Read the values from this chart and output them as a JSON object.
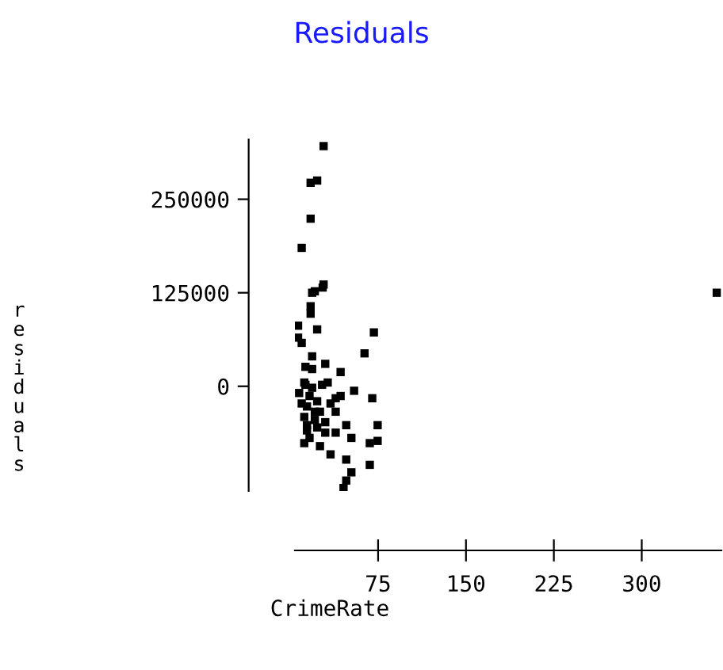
{
  "chart_data": {
    "type": "scatter",
    "title": "Residuals",
    "xlabel": "CrimeRate",
    "ylabel": "residuals",
    "x": [
      28.5,
      23,
      17.4,
      17.4,
      9.8,
      28.5,
      21,
      27.7,
      18.7,
      17.4,
      17.4,
      6.7,
      23,
      71.4,
      6.7,
      9.8,
      63.4,
      18.7,
      29.9,
      13,
      18.7,
      43,
      32,
      13,
      54.5,
      70,
      43,
      7.6,
      16.5,
      23,
      34.4,
      14.3,
      25.4,
      38.8,
      12,
      21,
      29.9,
      47.8,
      74.6,
      14.3,
      38.8,
      52.2,
      67.9,
      74.6,
      12,
      25.4,
      34.4,
      47.8,
      67.9,
      52.2,
      47.8,
      45.5,
      12,
      9.8,
      18.7,
      21,
      14.3,
      16.5,
      29.9,
      27.2,
      38.8,
      23,
      364
    ],
    "values": [
      321000,
      275000,
      272000,
      224000,
      185000,
      136000,
      127000,
      132000,
      125000,
      107000,
      97000,
      81000,
      76000,
      72000,
      65000,
      58000,
      44000,
      40000,
      30000,
      26000,
      23000,
      19000,
      5000,
      2000,
      -6000,
      -16000,
      -13000,
      -9000,
      -13000,
      -20000,
      -23000,
      -27000,
      -34000,
      -34000,
      -41000,
      -45000,
      -48000,
      -52000,
      -52000,
      -59000,
      -62000,
      -69000,
      -76000,
      -73000,
      -76000,
      -80000,
      -91000,
      -98000,
      -105000,
      -115000,
      -126000,
      -136000,
      5000,
      -23000,
      -2000,
      -34000,
      -52000,
      -69000,
      -62000,
      2000,
      -16000,
      -55000,
      125000
    ],
    "color": "#000000",
    "marker": "square",
    "xlim": [
      4,
      368
    ],
    "ylim": [
      -140000,
      330000
    ],
    "xticks": [
      75,
      150,
      225,
      300
    ],
    "yticks": [
      0,
      125000,
      250000
    ],
    "grid": false
  }
}
